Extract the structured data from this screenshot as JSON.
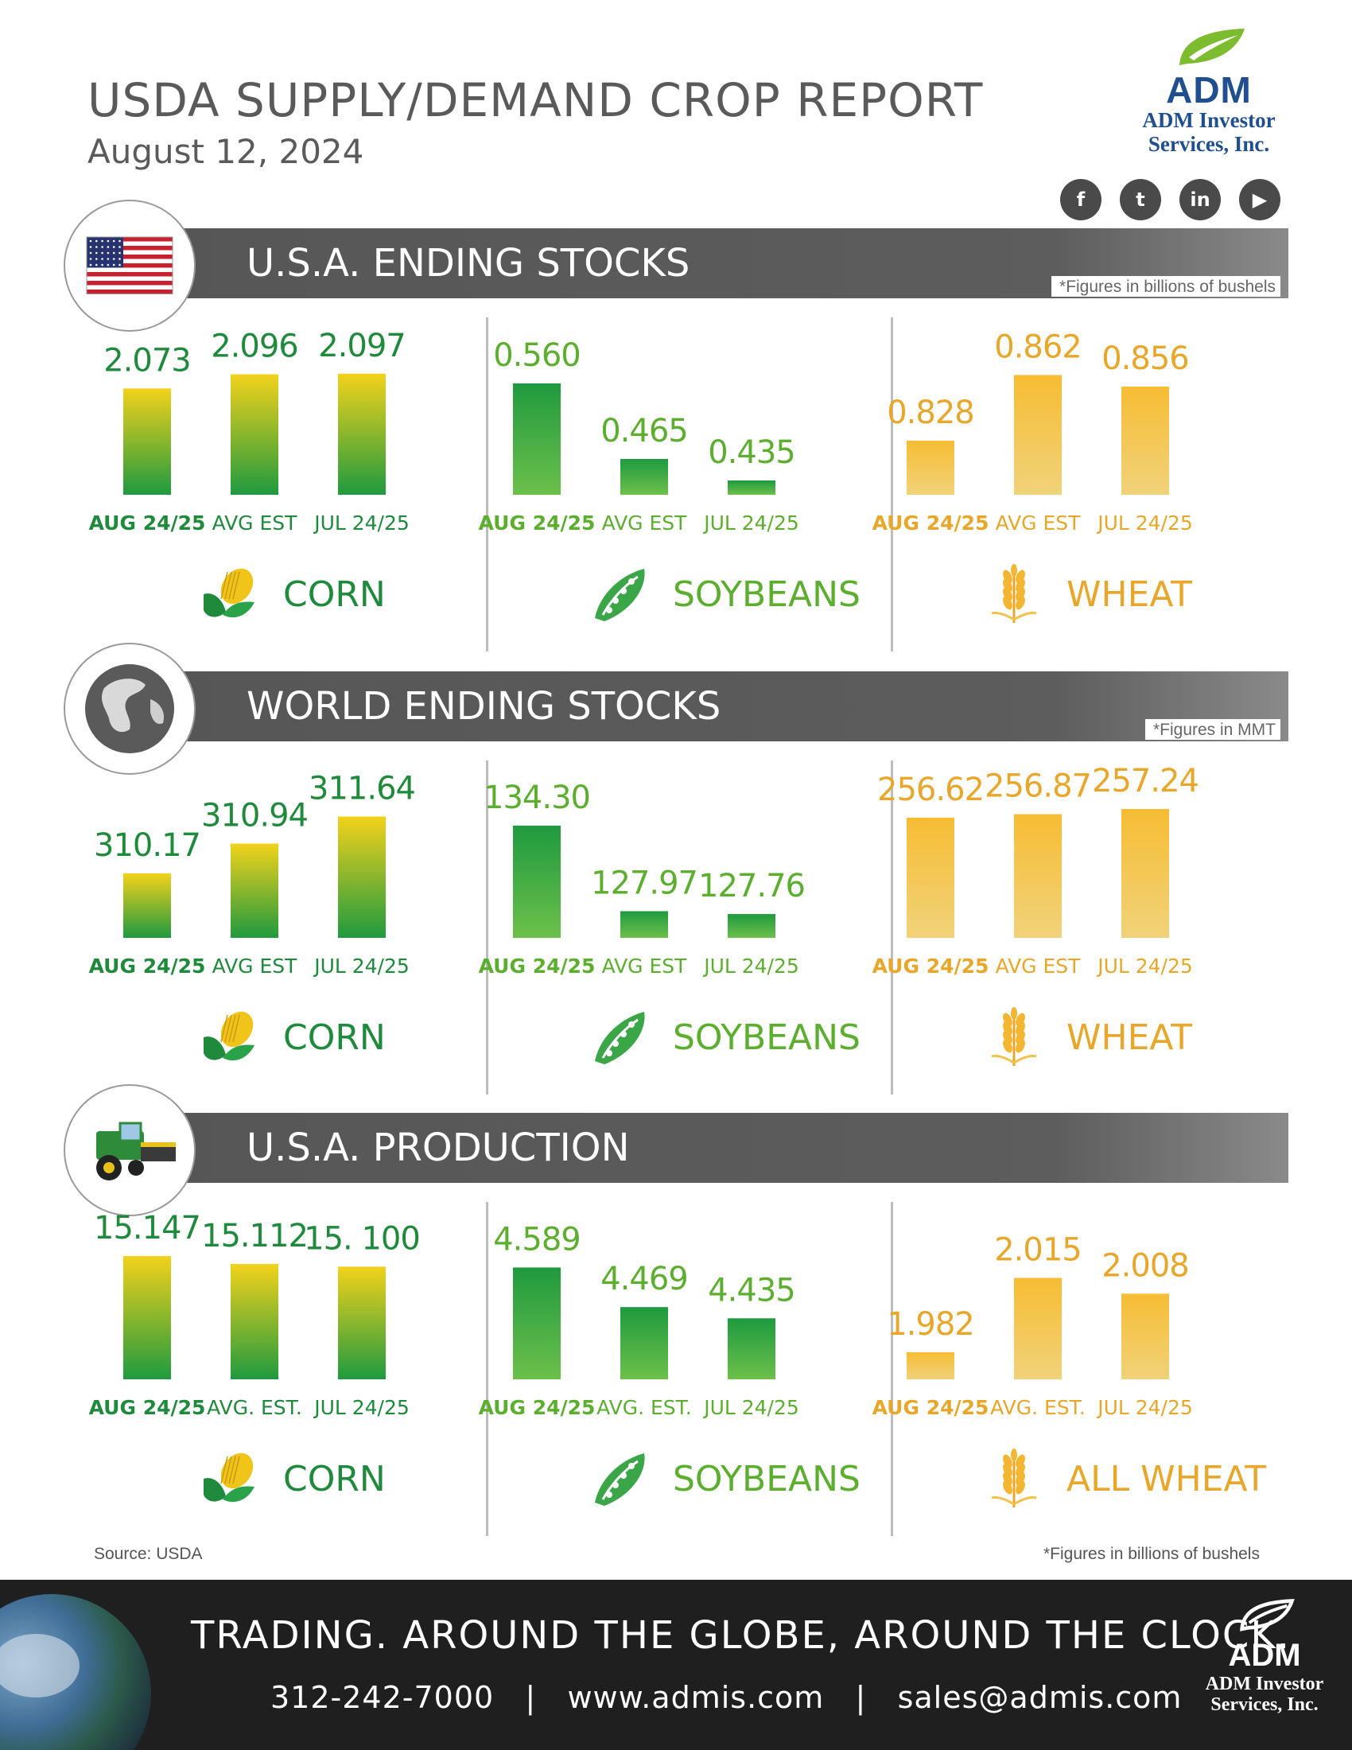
{
  "header": {
    "title": "USDA SUPPLY/DEMAND CROP REPORT",
    "date": "August 12, 2024"
  },
  "logo": {
    "brand": "ADM",
    "subtitle_line1": "ADM Investor",
    "subtitle_line2": "Services, Inc."
  },
  "social": [
    {
      "glyph": "f",
      "icon": "facebook-icon"
    },
    {
      "glyph": "t",
      "icon": "twitter-icon"
    },
    {
      "glyph": "in",
      "icon": "linkedin-icon"
    },
    {
      "glyph": "▶",
      "icon": "youtube-icon"
    }
  ],
  "colors": {
    "green": "#1f8a3c",
    "light_green": "#5cae2f",
    "gold": "#e8a72a",
    "bar_top_yellow": "#f3d21b",
    "bar_green": "#1f9a3f",
    "wheat_bar_top": "#f6bd33",
    "wheat_bar_bottom": "#f1d27a",
    "banner_gray": "#575757"
  },
  "sections": [
    {
      "title": "U.S.A. ENDING STOCKS",
      "note": "*Figures in billions of bushels",
      "emblem": "us-flag-icon",
      "crop_labels": [
        "CORN",
        "SOYBEANS",
        "WHEAT"
      ]
    },
    {
      "title": "WORLD ENDING STOCKS",
      "note": "*Figures in MMT",
      "emblem": "globe-icon",
      "crop_labels": [
        "CORN",
        "SOYBEANS",
        "WHEAT"
      ]
    },
    {
      "title": "U.S.A. PRODUCTION",
      "note": "",
      "emblem": "combine-harvester-icon",
      "crop_labels": [
        "CORN",
        "SOYBEANS",
        "ALL WHEAT"
      ]
    }
  ],
  "chart_data": [
    {
      "type": "bar",
      "section": "U.S.A. ENDING STOCKS",
      "crop": "CORN",
      "categories": [
        "AUG 24/25",
        "AVG EST",
        "JUL 24/25"
      ],
      "values": [
        2.073,
        2.096,
        2.097
      ],
      "labels": [
        "2.073",
        "2.096",
        "2.097"
      ]
    },
    {
      "type": "bar",
      "section": "U.S.A. ENDING STOCKS",
      "crop": "SOYBEANS",
      "categories": [
        "AUG 24/25",
        "AVG EST",
        "JUL 24/25"
      ],
      "values": [
        0.56,
        0.465,
        0.435
      ],
      "labels": [
        "0.560",
        "0.465",
        "0.435"
      ]
    },
    {
      "type": "bar",
      "section": "U.S.A. ENDING STOCKS",
      "crop": "WHEAT",
      "categories": [
        "AUG 24/25",
        "AVG EST",
        "JUL 24/25"
      ],
      "values": [
        0.828,
        0.862,
        0.856
      ],
      "labels": [
        "0.828",
        "0.862",
        "0.856"
      ]
    },
    {
      "type": "bar",
      "section": "WORLD ENDING STOCKS",
      "crop": "CORN",
      "categories": [
        "AUG 24/25",
        "AVG EST",
        "JUL 24/25"
      ],
      "values": [
        310.17,
        310.94,
        311.64
      ],
      "labels": [
        "310.17",
        "310.94",
        "311.64"
      ]
    },
    {
      "type": "bar",
      "section": "WORLD ENDING STOCKS",
      "crop": "SOYBEANS",
      "categories": [
        "AUG 24/25",
        "AVG EST",
        "JUL 24/25"
      ],
      "values": [
        134.3,
        127.97,
        127.76
      ],
      "labels": [
        "134.30",
        "127.97",
        "127.76"
      ]
    },
    {
      "type": "bar",
      "section": "WORLD ENDING STOCKS",
      "crop": "WHEAT",
      "categories": [
        "AUG 24/25",
        "AVG EST",
        "JUL 24/25"
      ],
      "values": [
        256.62,
        256.87,
        257.24
      ],
      "labels": [
        "256.62",
        "256.87",
        "257.24"
      ]
    },
    {
      "type": "bar",
      "section": "U.S.A. PRODUCTION",
      "crop": "CORN",
      "categories": [
        "AUG 24/25",
        "AVG. EST.",
        "JUL 24/25"
      ],
      "values": [
        15.147,
        15.112,
        15.1
      ],
      "labels": [
        "15.147",
        "15.112",
        "15. 100"
      ]
    },
    {
      "type": "bar",
      "section": "U.S.A. PRODUCTION",
      "crop": "SOYBEANS",
      "categories": [
        "AUG 24/25",
        "AVG. EST.",
        "JUL 24/25"
      ],
      "values": [
        4.589,
        4.469,
        4.435
      ],
      "labels": [
        "4.589",
        "4.469",
        "4.435"
      ]
    },
    {
      "type": "bar",
      "section": "U.S.A. PRODUCTION",
      "crop": "ALL WHEAT",
      "categories": [
        "AUG 24/25",
        "AVG. EST.",
        "JUL 24/25"
      ],
      "values": [
        1.982,
        2.015,
        2.008
      ],
      "labels": [
        "1.982",
        "2.015",
        "2.008"
      ]
    }
  ],
  "bottom": {
    "source": "Source: USDA",
    "note": "*Figures in billions of bushels"
  },
  "footer": {
    "tagline": "TRADING. AROUND THE GLOBE, AROUND THE CLOCK.",
    "contact": "312-242-7000   |   www.admis.com   |   sales@admis.com",
    "brand": "ADM",
    "subtitle_line1": "ADM Investor",
    "subtitle_line2": "Services, Inc."
  }
}
